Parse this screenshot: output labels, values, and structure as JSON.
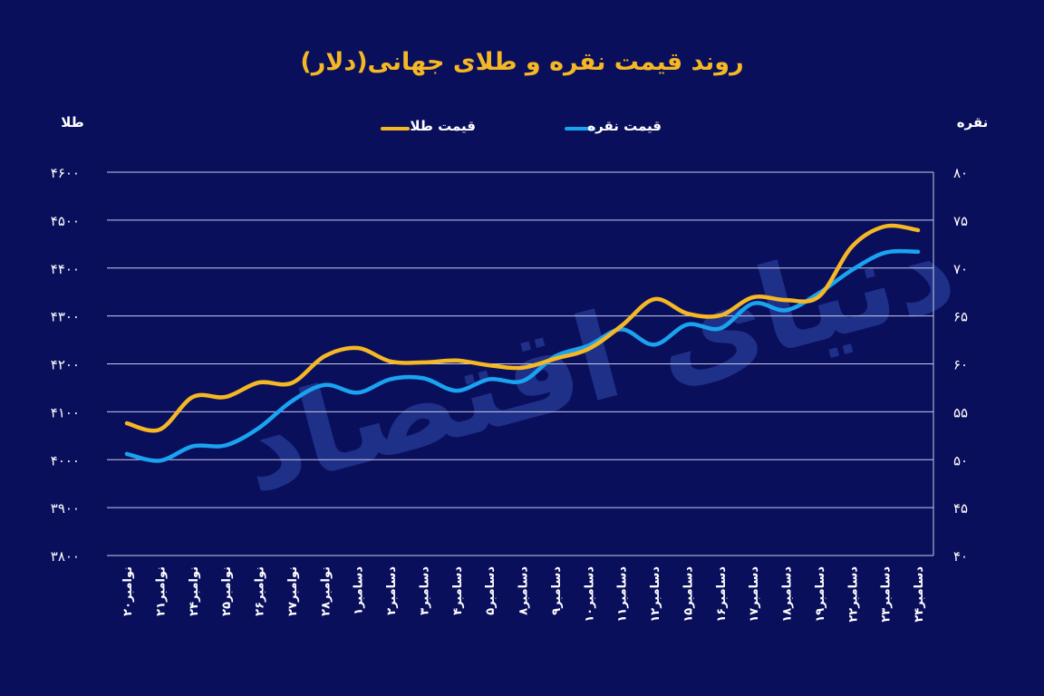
{
  "chart_data": {
    "type": "line",
    "title": "روند قیمت نقره و طلای جهانی(دلار)",
    "watermark": "دنیای اقتصاد",
    "ylabel_left": "طلا",
    "ylabel_right": "نقره",
    "legend_placement": "top-center",
    "grid": true,
    "categories": [
      "۲۰نوامبر",
      "۲۱نوامبر",
      "۲۴نوامبر",
      "۲۵نوامبر",
      "۲۶نوامبر",
      "۲۷نوامبر",
      "۲۸نوامبر",
      "۱دسامبر",
      "۲دسامبر",
      "۳دسامبر",
      "۴دسامبر",
      "۵دسامبر",
      "۸دسامبر",
      "۹دسامبر",
      "۱۰دسامبر",
      "۱۱دسامبر",
      "۱۲دسامبر",
      "۱۵دسامبر",
      "۱۶دسامبر",
      "۱۷دسامبر",
      "۱۸دسامبر",
      "۱۹دسامبر",
      "۲۲دسامبر",
      "۲۳دسامبر",
      "۲۴دسامبر"
    ],
    "left_axis": {
      "ylim": [
        3800,
        4600
      ],
      "ticks": [
        4600,
        4500,
        4400,
        4300,
        4200,
        4100,
        4000,
        3900,
        3800
      ],
      "tick_labels": [
        "۴۶۰۰",
        "۴۵۰۰",
        "۴۴۰۰",
        "۴۳۰۰",
        "۴۲۰۰",
        "۴۱۰۰",
        "۴۰۰۰",
        "۳۹۰۰",
        "۳۸۰۰"
      ]
    },
    "right_axis": {
      "ylim": [
        40,
        80
      ],
      "ticks": [
        80,
        75,
        70,
        65,
        60,
        55,
        50,
        45,
        40
      ],
      "tick_labels": [
        "۸۰",
        "۷۵",
        "۷۰",
        "۶۵",
        "۶۰",
        "۵۵",
        "۵۰",
        "۴۵",
        "۴۰"
      ]
    },
    "series": [
      {
        "name": "قیمت طلا",
        "axis": "left",
        "color": "#f5b824",
        "values": [
          4076,
          4063,
          4131,
          4131,
          4161,
          4160,
          4216,
          4233,
          4205,
          4203,
          4207,
          4197,
          4192,
          4211,
          4231,
          4279,
          4335,
          4305,
          4301,
          4339,
          4333,
          4341,
          4445,
          4487,
          4479
        ]
      },
      {
        "name": "قیمت نقره",
        "axis": "right",
        "color": "#1aa3f0",
        "values": [
          50.6,
          49.9,
          51.4,
          51.5,
          53.3,
          56.1,
          57.8,
          57.0,
          58.4,
          58.5,
          57.2,
          58.4,
          58.2,
          60.8,
          61.9,
          63.6,
          62.0,
          64.1,
          63.7,
          66.3,
          65.6,
          67.4,
          69.8,
          71.6,
          71.7
        ]
      }
    ]
  }
}
